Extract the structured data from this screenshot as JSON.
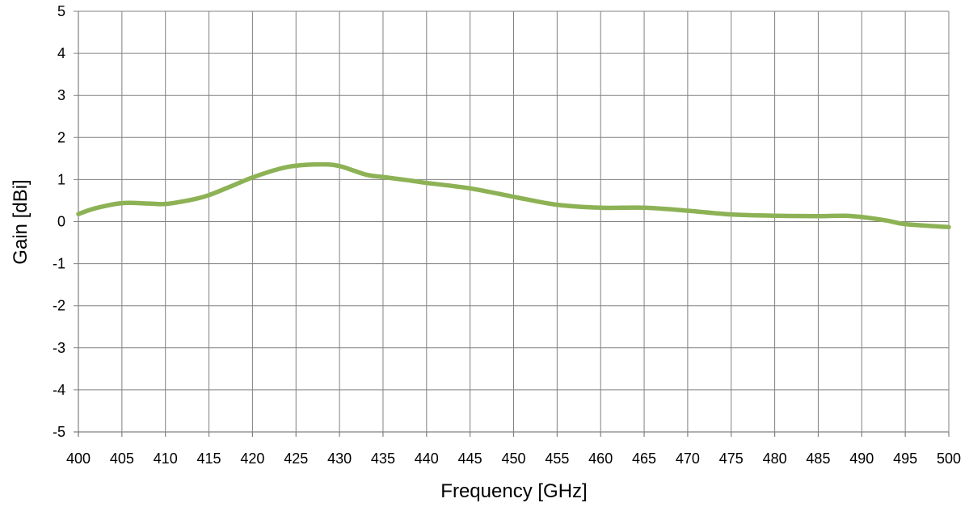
{
  "chart_data": {
    "type": "line",
    "title": "",
    "xlabel": "Frequency [GHz]",
    "ylabel": "Gain [dBi]",
    "xlim": [
      400,
      500
    ],
    "ylim": [
      -5,
      5
    ],
    "x_ticks": [
      400,
      405,
      410,
      415,
      420,
      425,
      430,
      435,
      440,
      445,
      450,
      455,
      460,
      465,
      470,
      475,
      480,
      485,
      490,
      495,
      500
    ],
    "y_ticks": [
      5,
      4,
      3,
      2,
      1,
      0,
      -1,
      -2,
      -3,
      -4,
      -5
    ],
    "x_tick_labels": [
      "400",
      "405",
      "410",
      "415",
      "420",
      "425",
      "430",
      "435",
      "440",
      "445",
      "450",
      "455",
      "460",
      "465",
      "470",
      "475",
      "480",
      "485",
      "490",
      "495",
      "500"
    ],
    "y_tick_labels": [
      "5",
      "4",
      "3",
      "2",
      "1",
      "0",
      "-1",
      "-2",
      "-3",
      "-4",
      "-5"
    ],
    "grid": true,
    "legend": "none",
    "series": [
      {
        "color": "#8db255",
        "x": [
          400,
          402,
          405,
          408,
          410,
          413,
          415,
          418,
          420,
          423,
          425,
          428,
          430,
          433,
          435,
          438,
          440,
          445,
          450,
          455,
          460,
          465,
          470,
          475,
          480,
          485,
          488,
          490,
          493,
          495,
          500
        ],
        "y": [
          0.18,
          0.32,
          0.44,
          0.43,
          0.42,
          0.52,
          0.63,
          0.88,
          1.05,
          1.25,
          1.33,
          1.36,
          1.32,
          1.12,
          1.06,
          0.98,
          0.92,
          0.79,
          0.59,
          0.4,
          0.33,
          0.33,
          0.26,
          0.17,
          0.14,
          0.13,
          0.14,
          0.11,
          0.02,
          -0.06,
          -0.13
        ]
      }
    ]
  }
}
